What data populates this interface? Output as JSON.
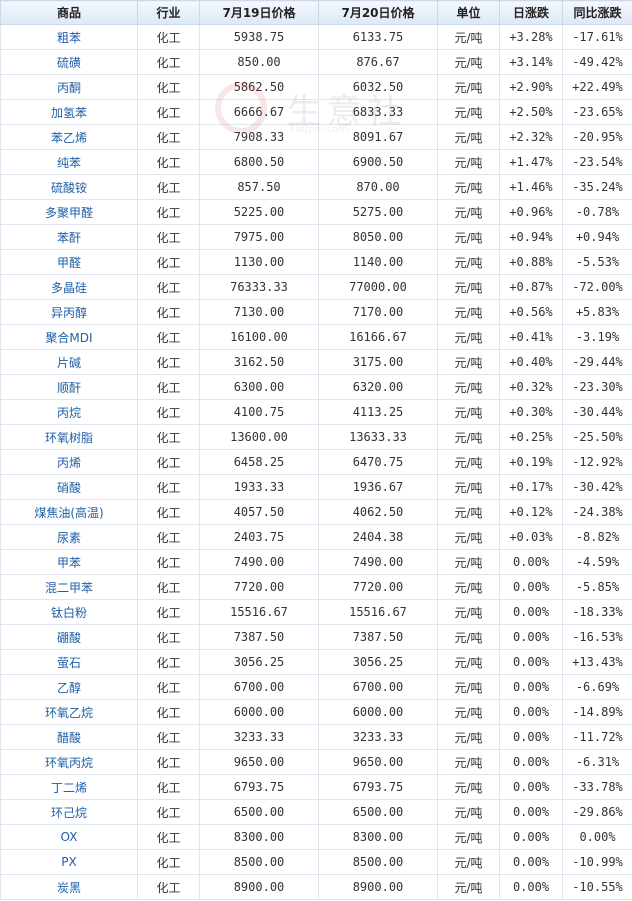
{
  "headers": [
    "商品",
    "行业",
    "7月19日价格",
    "7月20日价格",
    "单位",
    "日涨跌",
    "同比涨跌"
  ],
  "rows": [
    {
      "name": "粗苯",
      "industry": "化工",
      "p1": "5938.75",
      "p2": "6133.75",
      "unit": "元/吨",
      "day": "+3.28%",
      "yoy": "-17.61%"
    },
    {
      "name": "硫磺",
      "industry": "化工",
      "p1": "850.00",
      "p2": "876.67",
      "unit": "元/吨",
      "day": "+3.14%",
      "yoy": "-49.42%"
    },
    {
      "name": "丙酮",
      "industry": "化工",
      "p1": "5862.50",
      "p2": "6032.50",
      "unit": "元/吨",
      "day": "+2.90%",
      "yoy": "+22.49%"
    },
    {
      "name": "加氢苯",
      "industry": "化工",
      "p1": "6666.67",
      "p2": "6833.33",
      "unit": "元/吨",
      "day": "+2.50%",
      "yoy": "-23.65%"
    },
    {
      "name": "苯乙烯",
      "industry": "化工",
      "p1": "7908.33",
      "p2": "8091.67",
      "unit": "元/吨",
      "day": "+2.32%",
      "yoy": "-20.95%"
    },
    {
      "name": "纯苯",
      "industry": "化工",
      "p1": "6800.50",
      "p2": "6900.50",
      "unit": "元/吨",
      "day": "+1.47%",
      "yoy": "-23.54%"
    },
    {
      "name": "硫酸铵",
      "industry": "化工",
      "p1": "857.50",
      "p2": "870.00",
      "unit": "元/吨",
      "day": "+1.46%",
      "yoy": "-35.24%"
    },
    {
      "name": "多聚甲醛",
      "industry": "化工",
      "p1": "5225.00",
      "p2": "5275.00",
      "unit": "元/吨",
      "day": "+0.96%",
      "yoy": "-0.78%"
    },
    {
      "name": "苯酐",
      "industry": "化工",
      "p1": "7975.00",
      "p2": "8050.00",
      "unit": "元/吨",
      "day": "+0.94%",
      "yoy": "+0.94%"
    },
    {
      "name": "甲醛",
      "industry": "化工",
      "p1": "1130.00",
      "p2": "1140.00",
      "unit": "元/吨",
      "day": "+0.88%",
      "yoy": "-5.53%"
    },
    {
      "name": "多晶硅",
      "industry": "化工",
      "p1": "76333.33",
      "p2": "77000.00",
      "unit": "元/吨",
      "day": "+0.87%",
      "yoy": "-72.00%"
    },
    {
      "name": "异丙醇",
      "industry": "化工",
      "p1": "7130.00",
      "p2": "7170.00",
      "unit": "元/吨",
      "day": "+0.56%",
      "yoy": "+5.83%"
    },
    {
      "name": "聚合MDI",
      "industry": "化工",
      "p1": "16100.00",
      "p2": "16166.67",
      "unit": "元/吨",
      "day": "+0.41%",
      "yoy": "-3.19%"
    },
    {
      "name": "片碱",
      "industry": "化工",
      "p1": "3162.50",
      "p2": "3175.00",
      "unit": "元/吨",
      "day": "+0.40%",
      "yoy": "-29.44%"
    },
    {
      "name": "顺酐",
      "industry": "化工",
      "p1": "6300.00",
      "p2": "6320.00",
      "unit": "元/吨",
      "day": "+0.32%",
      "yoy": "-23.30%"
    },
    {
      "name": "丙烷",
      "industry": "化工",
      "p1": "4100.75",
      "p2": "4113.25",
      "unit": "元/吨",
      "day": "+0.30%",
      "yoy": "-30.44%"
    },
    {
      "name": "环氧树脂",
      "industry": "化工",
      "p1": "13600.00",
      "p2": "13633.33",
      "unit": "元/吨",
      "day": "+0.25%",
      "yoy": "-25.50%"
    },
    {
      "name": "丙烯",
      "industry": "化工",
      "p1": "6458.25",
      "p2": "6470.75",
      "unit": "元/吨",
      "day": "+0.19%",
      "yoy": "-12.92%"
    },
    {
      "name": "硝酸",
      "industry": "化工",
      "p1": "1933.33",
      "p2": "1936.67",
      "unit": "元/吨",
      "day": "+0.17%",
      "yoy": "-30.42%"
    },
    {
      "name": "煤焦油(高温)",
      "industry": "化工",
      "p1": "4057.50",
      "p2": "4062.50",
      "unit": "元/吨",
      "day": "+0.12%",
      "yoy": "-24.38%"
    },
    {
      "name": "尿素",
      "industry": "化工",
      "p1": "2403.75",
      "p2": "2404.38",
      "unit": "元/吨",
      "day": "+0.03%",
      "yoy": "-8.82%"
    },
    {
      "name": "甲苯",
      "industry": "化工",
      "p1": "7490.00",
      "p2": "7490.00",
      "unit": "元/吨",
      "day": "0.00%",
      "yoy": "-4.59%"
    },
    {
      "name": "混二甲苯",
      "industry": "化工",
      "p1": "7720.00",
      "p2": "7720.00",
      "unit": "元/吨",
      "day": "0.00%",
      "yoy": "-5.85%"
    },
    {
      "name": "钛白粉",
      "industry": "化工",
      "p1": "15516.67",
      "p2": "15516.67",
      "unit": "元/吨",
      "day": "0.00%",
      "yoy": "-18.33%"
    },
    {
      "name": "硼酸",
      "industry": "化工",
      "p1": "7387.50",
      "p2": "7387.50",
      "unit": "元/吨",
      "day": "0.00%",
      "yoy": "-16.53%"
    },
    {
      "name": "萤石",
      "industry": "化工",
      "p1": "3056.25",
      "p2": "3056.25",
      "unit": "元/吨",
      "day": "0.00%",
      "yoy": "+13.43%"
    },
    {
      "name": "乙醇",
      "industry": "化工",
      "p1": "6700.00",
      "p2": "6700.00",
      "unit": "元/吨",
      "day": "0.00%",
      "yoy": "-6.69%"
    },
    {
      "name": "环氧乙烷",
      "industry": "化工",
      "p1": "6000.00",
      "p2": "6000.00",
      "unit": "元/吨",
      "day": "0.00%",
      "yoy": "-14.89%"
    },
    {
      "name": "醋酸",
      "industry": "化工",
      "p1": "3233.33",
      "p2": "3233.33",
      "unit": "元/吨",
      "day": "0.00%",
      "yoy": "-11.72%"
    },
    {
      "name": "环氧丙烷",
      "industry": "化工",
      "p1": "9650.00",
      "p2": "9650.00",
      "unit": "元/吨",
      "day": "0.00%",
      "yoy": "-6.31%"
    },
    {
      "name": "丁二烯",
      "industry": "化工",
      "p1": "6793.75",
      "p2": "6793.75",
      "unit": "元/吨",
      "day": "0.00%",
      "yoy": "-33.78%"
    },
    {
      "name": "环己烷",
      "industry": "化工",
      "p1": "6500.00",
      "p2": "6500.00",
      "unit": "元/吨",
      "day": "0.00%",
      "yoy": "-29.86%"
    },
    {
      "name": "OX",
      "industry": "化工",
      "p1": "8300.00",
      "p2": "8300.00",
      "unit": "元/吨",
      "day": "0.00%",
      "yoy": "0.00%"
    },
    {
      "name": "PX",
      "industry": "化工",
      "p1": "8500.00",
      "p2": "8500.00",
      "unit": "元/吨",
      "day": "0.00%",
      "yoy": "-10.99%"
    },
    {
      "name": "炭黑",
      "industry": "化工",
      "p1": "8900.00",
      "p2": "8900.00",
      "unit": "元/吨",
      "day": "0.00%",
      "yoy": "-10.55%"
    }
  ],
  "watermark": {
    "text": "生意社",
    "url": "100ppi.com"
  },
  "colors": {
    "up": "#e0001b",
    "down": "#009a00",
    "flat": "#333333",
    "link": "#1f5fa8"
  }
}
